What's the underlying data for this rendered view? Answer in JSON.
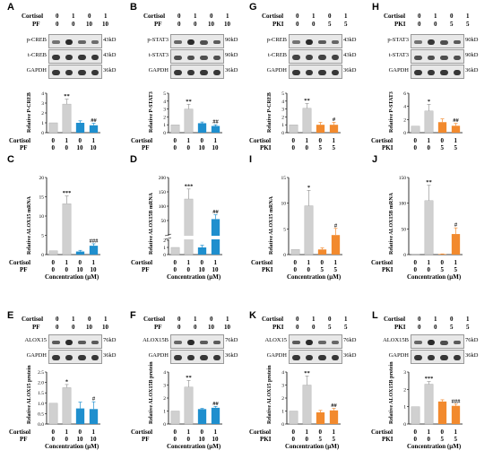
{
  "figure": {
    "kd": {
      "creb": "43kD",
      "stat3": "90kD",
      "gapdh": "36kD",
      "alox15": "76kD",
      "alox15b": "76kD"
    },
    "labels": {
      "cortisol": "Cortisol",
      "pf": "PF",
      "pki": "PKI",
      "conc": "Concentration (μM)"
    },
    "protein_labels": {
      "pcreb": "p-CREB",
      "tcreb": "t-CREB",
      "pstat3": "p-STAT3",
      "tstat3": "t-STAT3",
      "gapdh": "GAPDH",
      "alox15": "ALOX15",
      "alox15b": "ALOX15B"
    }
  },
  "chart_data": [
    {
      "panel": "A",
      "type": "bar",
      "title": "",
      "ylabel": "Relative P-CREB",
      "cortisol": [
        "0",
        "1",
        "0",
        "1"
      ],
      "treatment": [
        "0",
        "0",
        "10",
        "10"
      ],
      "treatment_name": "PF",
      "values": [
        1.0,
        2.9,
        1.0,
        0.75
      ],
      "errors": [
        0,
        0.5,
        0.2,
        0.2
      ],
      "sig": [
        "",
        "**",
        "",
        "##"
      ],
      "ylim": [
        0,
        4
      ],
      "yticks": [
        "0",
        "1",
        "2",
        "3",
        "4"
      ],
      "colors": [
        "#d0d0d0",
        "#d0d0d0",
        "#1f8fce",
        "#1f8fce"
      ]
    },
    {
      "panel": "B",
      "type": "bar",
      "title": "",
      "ylabel": "Relative P-STAT3",
      "cortisol": [
        "0",
        "1",
        "0",
        "1"
      ],
      "treatment": [
        "0",
        "0",
        "10",
        "10"
      ],
      "treatment_name": "PF",
      "values": [
        1.0,
        3.0,
        1.2,
        0.85
      ],
      "errors": [
        0,
        0.6,
        0.15,
        0.15
      ],
      "sig": [
        "",
        "**",
        "",
        "##"
      ],
      "ylim": [
        0,
        5
      ],
      "yticks": [
        "0",
        "1",
        "2",
        "3",
        "4",
        "5"
      ],
      "colors": [
        "#d0d0d0",
        "#d0d0d0",
        "#1f8fce",
        "#1f8fce"
      ]
    },
    {
      "panel": "G",
      "type": "bar",
      "title": "",
      "ylabel": "Relative P-CREB",
      "cortisol": [
        "0",
        "1",
        "0",
        "1"
      ],
      "treatment": [
        "0",
        "0",
        "5",
        "5"
      ],
      "treatment_name": "PKI",
      "values": [
        1.0,
        3.1,
        1.0,
        1.0
      ],
      "errors": [
        0,
        0.6,
        0.3,
        0.3
      ],
      "sig": [
        "",
        "**",
        "",
        "#"
      ],
      "ylim": [
        0,
        5
      ],
      "yticks": [
        "0",
        "1",
        "2",
        "3",
        "4",
        "5"
      ],
      "colors": [
        "#d0d0d0",
        "#d0d0d0",
        "#f28a2e",
        "#f28a2e"
      ]
    },
    {
      "panel": "H",
      "type": "bar",
      "title": "",
      "ylabel": "Relative P-STAT3",
      "cortisol": [
        "0",
        "1",
        "0",
        "1"
      ],
      "treatment": [
        "0",
        "0",
        "5",
        "5"
      ],
      "treatment_name": "PKI",
      "values": [
        1.0,
        3.3,
        1.6,
        1.05
      ],
      "errors": [
        0,
        1.0,
        0.5,
        0.35
      ],
      "sig": [
        "",
        "*",
        "",
        "##"
      ],
      "ylim": [
        0,
        6
      ],
      "yticks": [
        "0",
        "2",
        "4",
        "6"
      ],
      "colors": [
        "#d0d0d0",
        "#d0d0d0",
        "#f28a2e",
        "#f28a2e"
      ]
    },
    {
      "panel": "C",
      "type": "bar",
      "title": "",
      "ylabel": "Relative ALOX15 mRNA",
      "cortisol": [
        "0",
        "1",
        "0",
        "1"
      ],
      "treatment": [
        "0",
        "0",
        "10",
        "10"
      ],
      "treatment_name": "PF",
      "values": [
        1.0,
        13.2,
        0.8,
        2.3
      ],
      "errors": [
        0,
        2.0,
        0.3,
        0.5
      ],
      "sig": [
        "",
        "***",
        "",
        "###"
      ],
      "ylim": [
        0,
        20
      ],
      "yticks": [
        "0",
        "5",
        "10",
        "15",
        "20"
      ],
      "colors": [
        "#d0d0d0",
        "#d0d0d0",
        "#1f8fce",
        "#1f8fce"
      ]
    },
    {
      "panel": "D",
      "type": "bar",
      "title": "",
      "ylabel": "Relative ALOX15B mRNA",
      "cortisol": [
        "0",
        "1",
        "0",
        "1"
      ],
      "treatment": [
        "0",
        "0",
        "10",
        "10"
      ],
      "treatment_name": "PF",
      "values": [
        1.0,
        125,
        1.0,
        55
      ],
      "errors": [
        0,
        35,
        0.3,
        15
      ],
      "sig": [
        "",
        "***",
        "",
        "##"
      ],
      "ylim": [
        0,
        200
      ],
      "yticks": [
        "0",
        "1",
        "2",
        "50",
        "100",
        "150",
        "200"
      ],
      "colors": [
        "#d0d0d0",
        "#d0d0d0",
        "#1f8fce",
        "#1f8fce"
      ]
    },
    {
      "panel": "I",
      "type": "bar",
      "title": "",
      "ylabel": "Relative ALOX15 mRNA",
      "cortisol": [
        "0",
        "1",
        "0",
        "1"
      ],
      "treatment": [
        "0",
        "0",
        "5",
        "5"
      ],
      "treatment_name": "PKI",
      "values": [
        1.0,
        9.5,
        1.0,
        3.8
      ],
      "errors": [
        0,
        3.0,
        0.3,
        1.3
      ],
      "sig": [
        "",
        "*",
        "",
        "#"
      ],
      "ylim": [
        0,
        15
      ],
      "yticks": [
        "0",
        "5",
        "10",
        "15"
      ],
      "colors": [
        "#d0d0d0",
        "#d0d0d0",
        "#f28a2e",
        "#f28a2e"
      ]
    },
    {
      "panel": "J",
      "type": "bar",
      "title": "",
      "ylabel": "Relative ALOX15B mRNA",
      "cortisol": [
        "0",
        "1",
        "0",
        "1"
      ],
      "treatment": [
        "0",
        "0",
        "5",
        "5"
      ],
      "treatment_name": "PKI",
      "values": [
        1.0,
        105,
        1.0,
        40
      ],
      "errors": [
        0,
        30,
        0.3,
        12
      ],
      "sig": [
        "",
        "**",
        "",
        "#"
      ],
      "ylim": [
        0,
        150
      ],
      "yticks": [
        "0",
        "50",
        "100",
        "150"
      ],
      "colors": [
        "#d0d0d0",
        "#d0d0d0",
        "#f28a2e",
        "#f28a2e"
      ]
    },
    {
      "panel": "E",
      "type": "bar",
      "title": "",
      "ylabel": "Relative ALOX15 protein",
      "cortisol": [
        "0",
        "1",
        "0",
        "1"
      ],
      "treatment": [
        "0",
        "0",
        "10",
        "10"
      ],
      "treatment_name": "PF",
      "values": [
        1.0,
        1.75,
        0.75,
        0.72
      ],
      "errors": [
        0,
        0.15,
        0.3,
        0.35
      ],
      "sig": [
        "",
        "*",
        "",
        "#"
      ],
      "ylim": [
        0,
        2.5
      ],
      "yticks": [
        "0.0",
        "0.5",
        "1.0",
        "1.5",
        "2.0",
        "2.5"
      ],
      "colors": [
        "#d0d0d0",
        "#d0d0d0",
        "#1f8fce",
        "#1f8fce"
      ]
    },
    {
      "panel": "F",
      "type": "bar",
      "title": "",
      "ylabel": "Relative ALOX15B protein",
      "cortisol": [
        "0",
        "1",
        "0",
        "1"
      ],
      "treatment": [
        "0",
        "0",
        "10",
        "10"
      ],
      "treatment_name": "PF",
      "values": [
        1.0,
        2.85,
        1.15,
        1.25
      ],
      "errors": [
        0,
        0.5,
        0.05,
        0.1
      ],
      "sig": [
        "",
        "**",
        "",
        "##"
      ],
      "ylim": [
        0,
        4
      ],
      "yticks": [
        "0",
        "1",
        "2",
        "3",
        "4"
      ],
      "colors": [
        "#d0d0d0",
        "#d0d0d0",
        "#1f8fce",
        "#1f8fce"
      ]
    },
    {
      "panel": "K",
      "type": "bar",
      "title": "",
      "ylabel": "Relative ALOX15 protein",
      "cortisol": [
        "0",
        "1",
        "0",
        "1"
      ],
      "treatment": [
        "0",
        "0",
        "5",
        "5"
      ],
      "treatment_name": "PKI",
      "values": [
        1.0,
        3.0,
        0.9,
        1.05
      ],
      "errors": [
        0,
        0.7,
        0.15,
        0.15
      ],
      "sig": [
        "",
        "**",
        "",
        "##"
      ],
      "ylim": [
        0,
        4
      ],
      "yticks": [
        "0",
        "1",
        "2",
        "3",
        "4"
      ],
      "colors": [
        "#d0d0d0",
        "#d0d0d0",
        "#f28a2e",
        "#f28a2e"
      ]
    },
    {
      "panel": "L",
      "type": "bar",
      "title": "",
      "ylabel": "Relative ALOX15B protein",
      "cortisol": [
        "0",
        "1",
        "0",
        "1"
      ],
      "treatment": [
        "0",
        "0",
        "5",
        "5"
      ],
      "treatment_name": "PKI",
      "values": [
        1.0,
        2.3,
        1.3,
        1.05
      ],
      "errors": [
        0,
        0.15,
        0.1,
        0.1
      ],
      "sig": [
        "",
        "***",
        "",
        "###"
      ],
      "ylim": [
        0,
        3
      ],
      "yticks": [
        "0",
        "1",
        "2",
        "3"
      ],
      "colors": [
        "#d0d0d0",
        "#d0d0d0",
        "#f28a2e",
        "#f28a2e"
      ]
    }
  ]
}
